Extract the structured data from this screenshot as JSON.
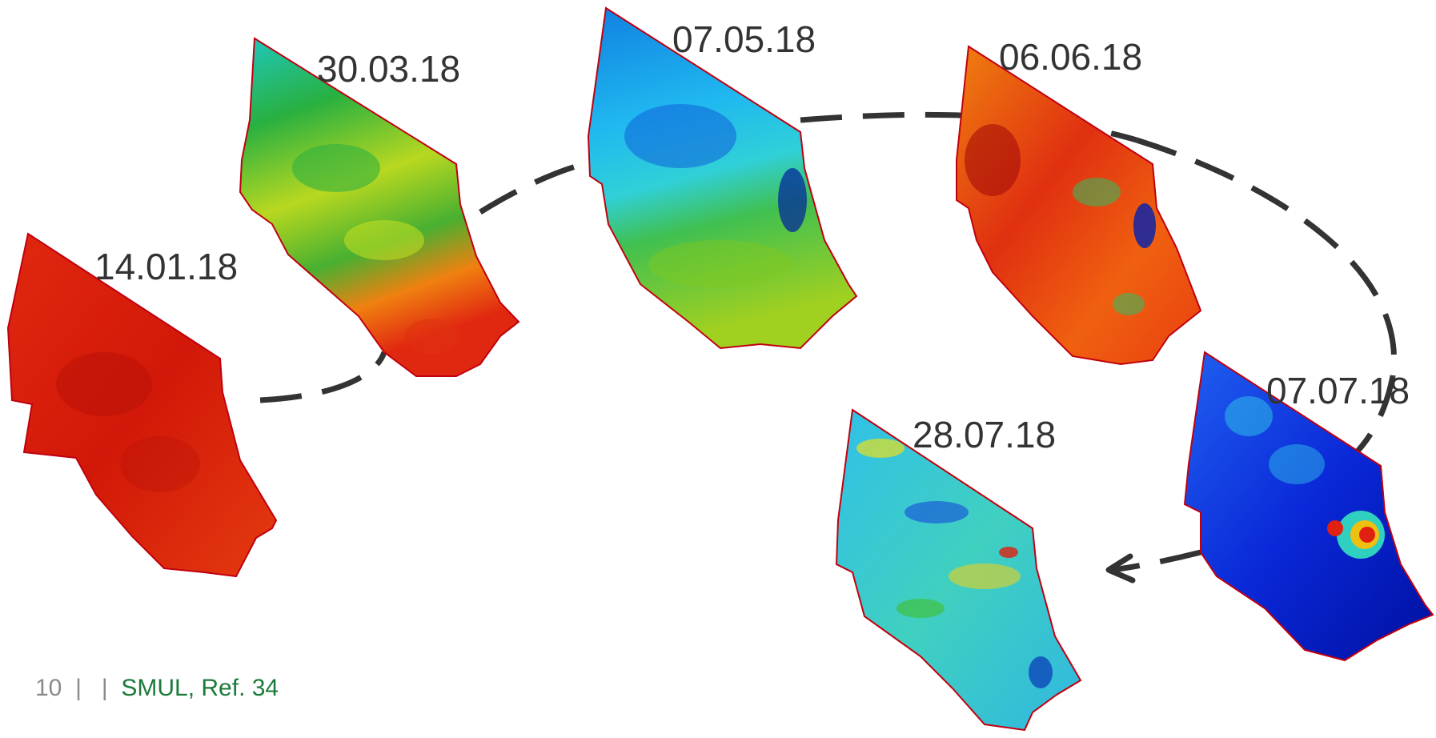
{
  "maps": [
    {
      "date": "14.01.18",
      "scheme": "red"
    },
    {
      "date": "30.03.18",
      "scheme": "green-yellow"
    },
    {
      "date": "07.05.18",
      "scheme": "blue-green"
    },
    {
      "date": "06.06.18",
      "scheme": "red-orange"
    },
    {
      "date": "07.07.18",
      "scheme": "deep-blue"
    },
    {
      "date": "28.07.18",
      "scheme": "cyan-mixed"
    }
  ],
  "footer": {
    "page_number": "10",
    "separator": "|",
    "source": "SMUL, Ref. 34"
  },
  "colors": {
    "label_text": "#333333",
    "footer_source": "#1a7a3a",
    "footer_grey": "#8a8a8a",
    "arrow": "#333333"
  }
}
